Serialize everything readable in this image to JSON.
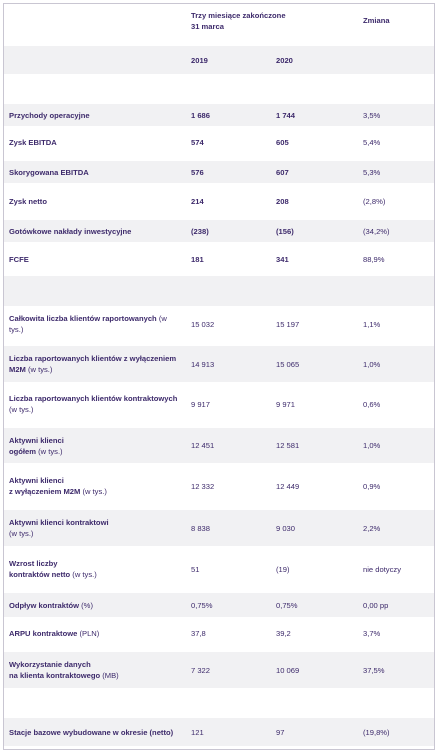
{
  "header": {
    "period_line1": "Trzy miesiące zakończone",
    "period_line2": "31 marca",
    "change": "Zmiana",
    "year1": "2019",
    "year2": "2020"
  },
  "rows": [
    {
      "label": "Przychody operacyjne",
      "v2019": "1 686",
      "v2020": "1 744",
      "change": "3,5%"
    },
    {
      "label": "Zysk EBITDA",
      "v2019": "574",
      "v2020": "605",
      "change": "5,4%"
    },
    {
      "label": "Skorygowana EBITDA",
      "v2019": "576",
      "v2020": "607",
      "change": "5,3%"
    },
    {
      "label": "Zysk netto",
      "v2019": "214",
      "v2020": "208",
      "change": "(2,8%)"
    },
    {
      "label": "Gotówkowe nakłady inwestycyjne",
      "v2019": "(238)",
      "v2020": "(156)",
      "change": "(34,2%)"
    },
    {
      "label": "FCFE",
      "v2019": "181",
      "v2020": "341",
      "change": "88,9%"
    },
    {
      "label": "Całkowita liczba klientów raportowanych",
      "unit": " (w tys.)",
      "v2019": "15 032",
      "v2020": "15 197",
      "change": "1,1%"
    },
    {
      "label": "Liczba raportowanych klientów z wyłączeniem M2M",
      "unit": " (w tys.)",
      "v2019": "14 913",
      "v2020": "15 065",
      "change": "1,0%"
    },
    {
      "label": "Liczba raportowanych klientów kontraktowych",
      "unit": " (w tys.)",
      "v2019": "9 917",
      "v2020": "9 971",
      "change": "0,6%"
    },
    {
      "label_line1": "Aktywni klienci",
      "label_line2": "ogółem",
      "unit": " (w tys.)",
      "v2019": "12 451",
      "v2020": "12 581",
      "change": "1,0%"
    },
    {
      "label_line1": "Aktywni klienci",
      "label_line2": "z wyłączeniem M2M",
      "unit": " (w tys.)",
      "v2019": "12 332",
      "v2020": "12 449",
      "change": "0,9%"
    },
    {
      "label": "Aktywni klienci kontraktowi",
      "unit": " (w tys.)",
      "v2019": "8 838",
      "v2020": "9 030",
      "change": "2,2%"
    },
    {
      "label_line1": "Wzrost liczby",
      "label_line2": "kontraktów netto",
      "unit": " (w tys.)",
      "v2019": "51",
      "v2020": "(19)",
      "change": "nie dotyczy"
    },
    {
      "label": "Odpływ kontraktów",
      "unit": " (%)",
      "v2019": "0,75%",
      "v2020": "0,75%",
      "change": "0,00 pp"
    },
    {
      "label": "ARPU kontraktowe",
      "unit": " (PLN)",
      "v2019": "37,8",
      "v2020": "39,2",
      "change": "3,7%"
    },
    {
      "label_line1": "Wykorzystanie danych",
      "label_line2": "na klienta kontraktowego",
      "unit": " (MB)",
      "v2019": "7 322",
      "v2020": "10 069",
      "change": "37,5%"
    },
    {
      "label": "Stacje bazowe wybudowane w okresie (netto)",
      "v2019": "121",
      "v2020": "97",
      "change": "(19,8%)"
    }
  ]
}
